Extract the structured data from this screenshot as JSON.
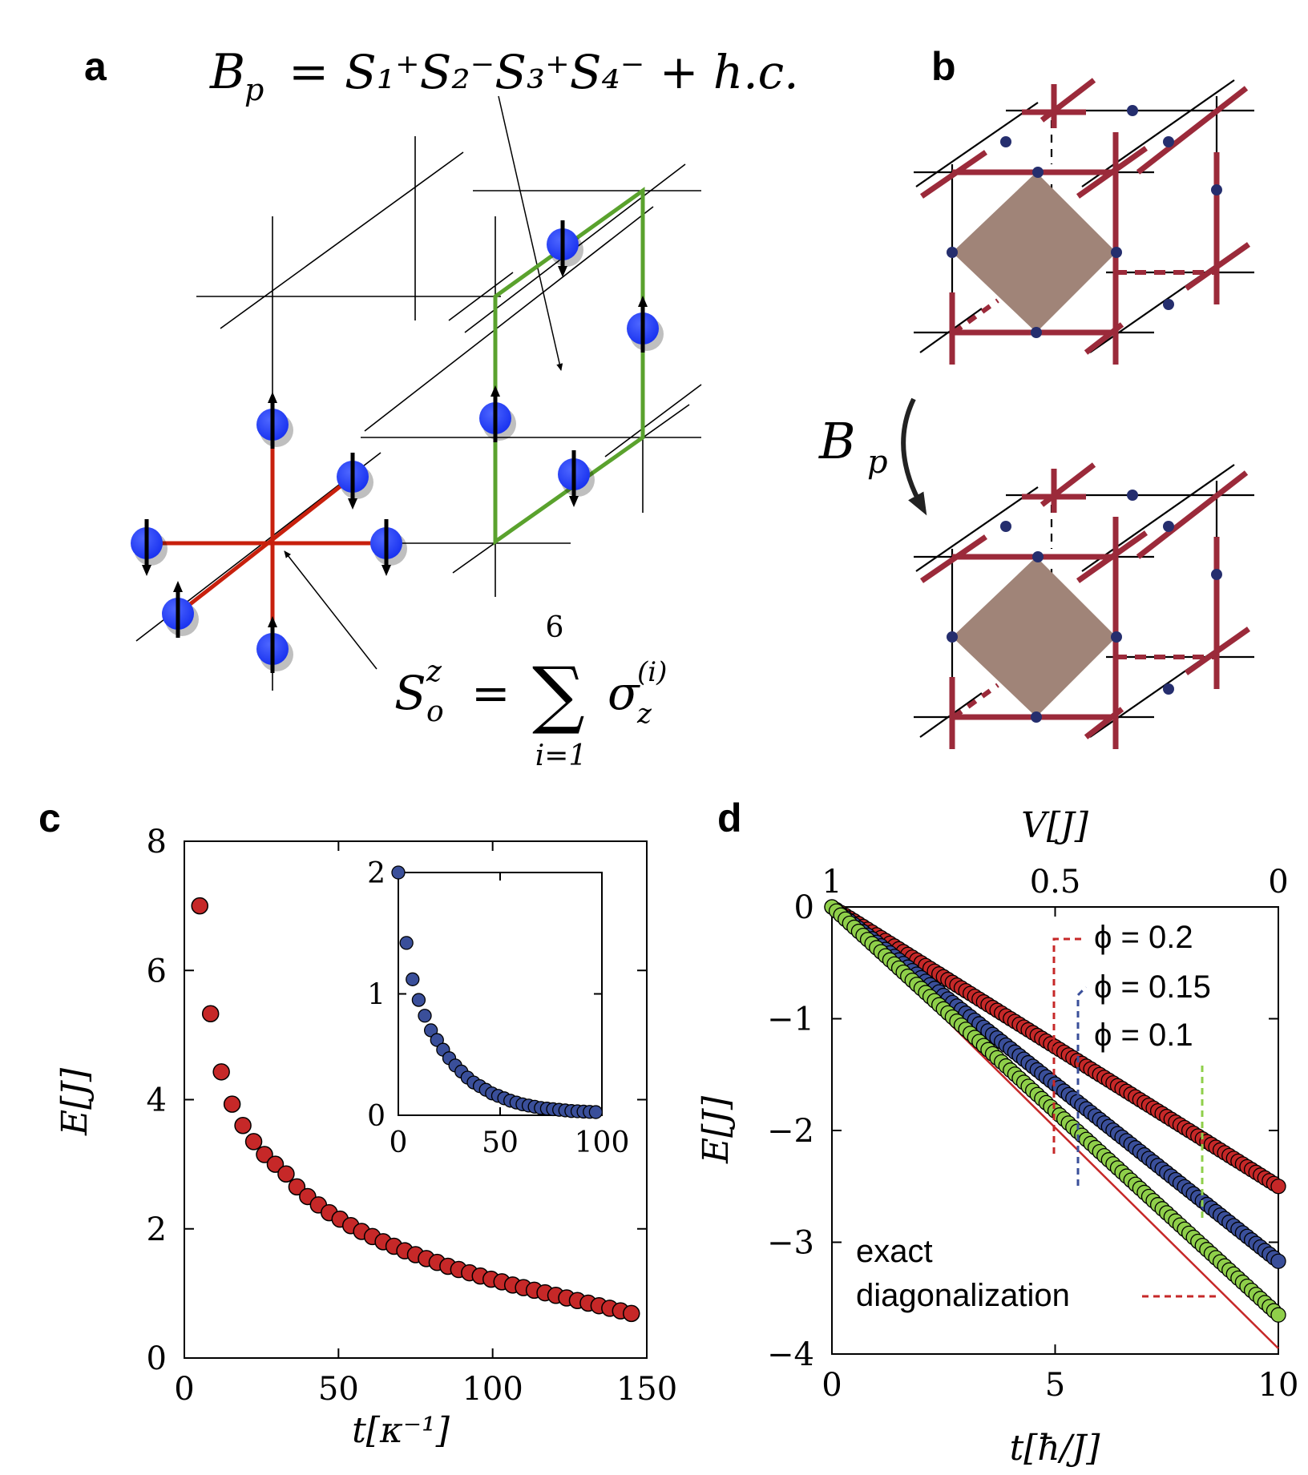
{
  "panels": {
    "a": {
      "letter": "a",
      "plaquette_operator": {
        "lhs": "B",
        "lhs_sub": "p",
        "rhs": "S₁⁺S₂⁻S₃⁺S₄⁻ + h.c."
      },
      "vertex_operator": {
        "lhs": "S",
        "lhs_sup": "z",
        "lhs_sub": "o",
        "sum_upper": "6",
        "sum_lower": "i=1",
        "term": "σ",
        "term_sup": "(i)",
        "term_sub": "z"
      },
      "colors": {
        "vertex_edges": "#c8200d",
        "plaquette_edges": "#5aa22d",
        "spin": "#1f3cff"
      }
    },
    "b": {
      "letter": "b",
      "arrow_label": "B",
      "arrow_label_sub": "p",
      "colors": {
        "flux_lines": "#9b2a3a",
        "plaquette": "#a08478",
        "sites": "#252e6e"
      }
    }
  },
  "chart_data": [
    {
      "panel": "c",
      "type": "scatter",
      "xlabel": "t[κ⁻¹]",
      "ylabel": "E[J]",
      "xlim": [
        0,
        150
      ],
      "ylim": [
        0,
        8
      ],
      "xticks": [
        "0",
        "50",
        "100",
        "150"
      ],
      "yticks": [
        "0",
        "2",
        "4",
        "6",
        "8"
      ],
      "series": [
        {
          "color": "#c62828",
          "x": [
            5,
            8.5,
            12,
            15.5,
            19,
            22.5,
            26,
            29.5,
            33,
            36.5,
            40,
            43.5,
            47,
            50.5,
            54,
            57.5,
            61,
            64.5,
            68,
            71.5,
            75,
            78.5,
            82,
            85.5,
            89,
            92.5,
            96,
            99.5,
            103,
            106.5,
            110,
            113.5,
            117,
            120.5,
            124,
            127.5,
            131,
            134.5,
            138,
            141.5,
            145
          ],
          "y": [
            7.0,
            5.33,
            4.43,
            3.93,
            3.6,
            3.35,
            3.15,
            3.0,
            2.85,
            2.65,
            2.5,
            2.37,
            2.25,
            2.15,
            2.05,
            1.96,
            1.88,
            1.8,
            1.73,
            1.66,
            1.6,
            1.54,
            1.48,
            1.42,
            1.37,
            1.32,
            1.27,
            1.22,
            1.18,
            1.13,
            1.09,
            1.05,
            1.01,
            0.97,
            0.93,
            0.89,
            0.85,
            0.81,
            0.77,
            0.73,
            0.69
          ]
        }
      ],
      "inset": {
        "xlim": [
          0,
          100
        ],
        "ylim": [
          0,
          2
        ],
        "xticks": [
          "0",
          "50",
          "100"
        ],
        "yticks": [
          "0",
          "1",
          "2"
        ],
        "color": "#3a4f9a",
        "x": [
          0,
          4,
          7,
          10,
          13,
          16,
          19,
          22,
          25,
          28,
          31,
          34,
          37,
          40,
          43,
          46,
          49,
          52,
          55,
          58,
          61,
          64,
          67,
          70,
          73,
          76,
          79,
          82,
          85,
          88,
          91,
          94,
          97
        ],
        "y": [
          2.0,
          1.42,
          1.12,
          0.95,
          0.82,
          0.7,
          0.62,
          0.54,
          0.47,
          0.41,
          0.36,
          0.31,
          0.27,
          0.24,
          0.21,
          0.18,
          0.16,
          0.14,
          0.12,
          0.105,
          0.09,
          0.08,
          0.07,
          0.06,
          0.055,
          0.05,
          0.045,
          0.04,
          0.035,
          0.033,
          0.03,
          0.028,
          0.026
        ]
      }
    },
    {
      "panel": "d",
      "type": "scatter",
      "xlabel": "t[ħ/J]",
      "ylabel": "E[J]",
      "top_xlabel": "V[J]",
      "xlim": [
        0,
        10
      ],
      "ylim": [
        -4,
        0
      ],
      "xticks": [
        "0",
        "5",
        "10"
      ],
      "yticks": [
        "0",
        "−1",
        "−2",
        "−3",
        "−4"
      ],
      "top_xticks": [
        "1",
        "0.5",
        "0"
      ],
      "series": [
        {
          "name": "ϕ = 0.2",
          "color": "#c62828",
          "end_value": -2.5
        },
        {
          "name": "ϕ = 0.15",
          "color": "#3a4f9a",
          "end_value": -3.17
        },
        {
          "name": "ϕ = 0.1",
          "color": "#8fcf4a",
          "end_value": -3.65
        }
      ],
      "reference_line": {
        "label_line1": "exact",
        "label_line2": "diagonalization",
        "color": "#c62828",
        "end_value": -3.95
      }
    }
  ]
}
